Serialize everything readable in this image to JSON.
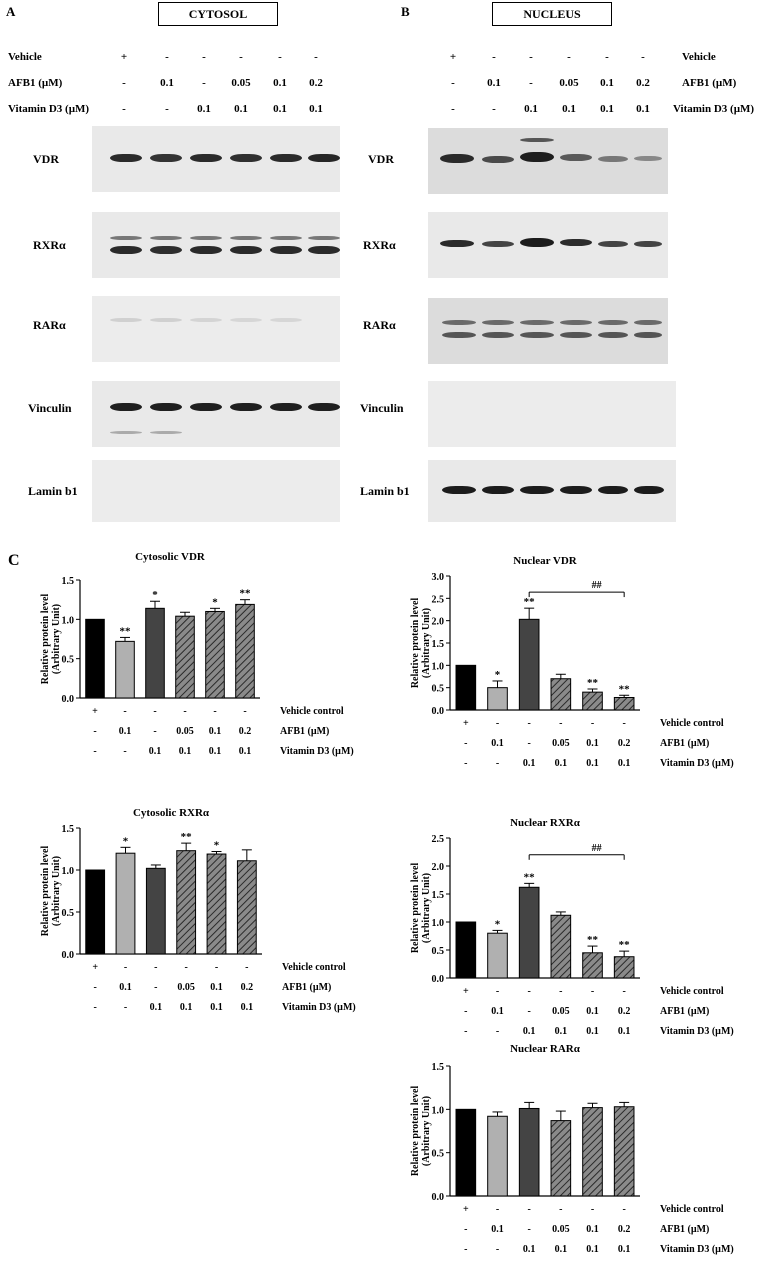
{
  "panels": {
    "a_letter": "A",
    "b_letter": "B",
    "c_letter": "C",
    "cytosol_title": "CYTOSOL",
    "nucleus_title": "NUCLEUS"
  },
  "blot_conditions": {
    "vehicle_label": "Vehicle",
    "afb1_label": "AFB1 (µM)",
    "vitd3_label": "Vitamin D3 (µM)",
    "vehicle": [
      "+",
      "-",
      "-",
      "-",
      "-",
      "-"
    ],
    "afb1": [
      "-",
      "0.1",
      "-",
      "0.05",
      "0.1",
      "0.2"
    ],
    "vitd3": [
      "-",
      "-",
      "0.1",
      "0.1",
      "0.1",
      "0.1"
    ]
  },
  "blots": {
    "cytosol": [
      "VDR",
      "RXRα",
      "RARα",
      "Vinculin",
      "Lamin b1"
    ],
    "nucleus": [
      "VDR",
      "RXRα",
      "RARα",
      "Vinculin",
      "Lamin b1"
    ]
  },
  "chart_conditions": {
    "vehicle_label": "Vehicle control",
    "afb1_label": "AFB1 (µM)",
    "vitd3_label": "Vitamin D3 (µM)",
    "vehicle": [
      "+",
      "-",
      "-",
      "-",
      "-",
      "-"
    ],
    "afb1": [
      "-",
      "0.1",
      "-",
      "0.05",
      "0.1",
      "0.2"
    ],
    "vitd3": [
      "-",
      "-",
      "0.1",
      "0.1",
      "0.1",
      "0.1"
    ]
  },
  "chart_data": [
    {
      "type": "bar",
      "title": "Cytosolic VDR",
      "ylabel": "Relative protein level (Arbitrary Unit)",
      "ylim": [
        0,
        1.5
      ],
      "yticks": [
        "0.0",
        "0.5",
        "1.0",
        "1.5"
      ],
      "values": [
        1.0,
        0.72,
        1.14,
        1.04,
        1.1,
        1.19
      ],
      "errors": [
        0,
        0.05,
        0.09,
        0.05,
        0.04,
        0.06
      ],
      "sig": [
        "",
        "**",
        "*",
        "",
        "*",
        "**"
      ],
      "bracket": null
    },
    {
      "type": "bar",
      "title": "Nuclear VDR",
      "ylabel": "Relative protein level (Arbitrary Unit)",
      "ylim": [
        0,
        3.0
      ],
      "yticks": [
        "0.0",
        "0.5",
        "1.0",
        "1.5",
        "2.0",
        "2.5",
        "3.0"
      ],
      "values": [
        1.0,
        0.5,
        2.03,
        0.7,
        0.4,
        0.28
      ],
      "errors": [
        0,
        0.15,
        0.25,
        0.1,
        0.07,
        0.05
      ],
      "sig": [
        "",
        "*",
        "**",
        "",
        "**",
        "**"
      ],
      "bracket": "##"
    },
    {
      "type": "bar",
      "title": "Cytosolic RXRα",
      "ylabel": "Relative protein level (Arbitrary Unit)",
      "ylim": [
        0,
        1.5
      ],
      "yticks": [
        "0.0",
        "0.5",
        "1.0",
        "1.5"
      ],
      "values": [
        1.0,
        1.2,
        1.02,
        1.23,
        1.19,
        1.11
      ],
      "errors": [
        0,
        0.07,
        0.04,
        0.09,
        0.03,
        0.13
      ],
      "sig": [
        "",
        "*",
        "",
        "**",
        "*",
        ""
      ],
      "bracket": null
    },
    {
      "type": "bar",
      "title": "Nuclear RXRα",
      "ylabel": "Relative protein level (Arbitrary Unit)",
      "ylim": [
        0,
        2.5
      ],
      "yticks": [
        "0.0",
        "0.5",
        "1.0",
        "1.5",
        "2.0",
        "2.5"
      ],
      "values": [
        1.0,
        0.8,
        1.62,
        1.12,
        0.45,
        0.38
      ],
      "errors": [
        0,
        0.05,
        0.07,
        0.06,
        0.12,
        0.1
      ],
      "sig": [
        "",
        "*",
        "**",
        "",
        "**",
        "**"
      ],
      "bracket": "##"
    },
    {
      "type": "bar",
      "title": "Nuclear RARα",
      "ylabel": "Relative protein level (Arbitrary Unit)",
      "ylim": [
        0,
        1.5
      ],
      "yticks": [
        "0.0",
        "0.5",
        "1.0",
        "1.5"
      ],
      "values": [
        1.0,
        0.92,
        1.01,
        0.87,
        1.02,
        1.03
      ],
      "errors": [
        0,
        0.05,
        0.07,
        0.11,
        0.05,
        0.05
      ],
      "sig": [
        "",
        "",
        "",
        "",
        "",
        ""
      ],
      "bracket": null
    }
  ],
  "colors": {
    "vehicle": "#000000",
    "afb1": "#b0b0b0",
    "vitd3": "#444444",
    "combo": "#8a8a8a"
  }
}
